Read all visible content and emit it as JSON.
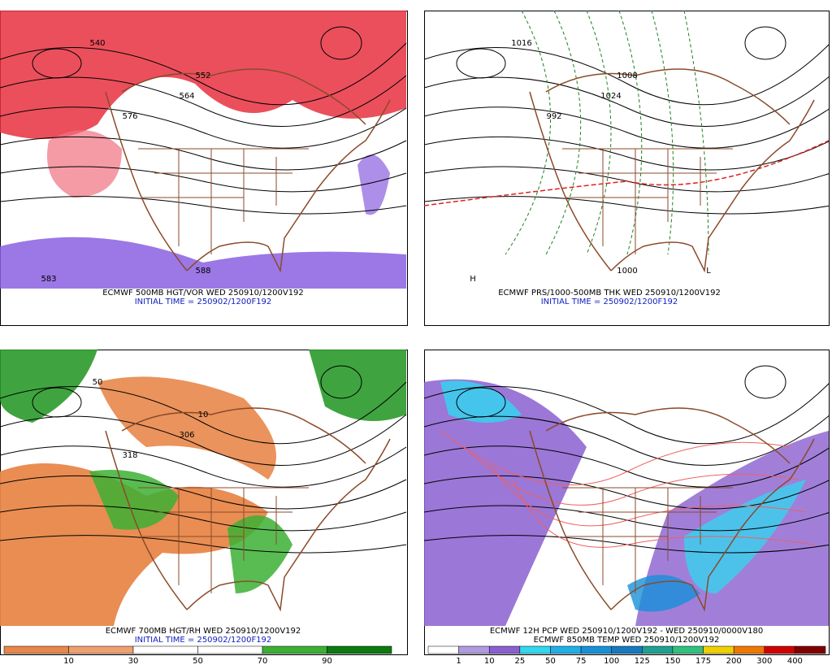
{
  "panels": [
    {
      "caption": "ECMWF 500MB HGT/VOR WED 250910/1200V192",
      "initial_time": "INITIAL TIME = 250902/1200F192",
      "contour_labels": [
        "540",
        "552",
        "564",
        "576",
        "588",
        "583"
      ]
    },
    {
      "caption": "ECMWF PRS/1000-500MB THK WED 250910/1200V192",
      "initial_time": "INITIAL TIME = 250902/1200F192",
      "contour_labels": [
        "1016",
        "1008",
        "1024",
        "992",
        "1000",
        "H",
        "L"
      ]
    },
    {
      "caption": "ECMWF 700MB HGT/RH WED 250910/1200V192",
      "initial_time": "INITIAL TIME = 250902/1200F192",
      "contour_labels": [
        "50",
        "10",
        "306",
        "318"
      ]
    },
    {
      "captions": [
        "ECMWF 12H PCP WED 250910/1200V192 - WED 250910/0000V180",
        "ECMWF 850MB TEMP WED 250910/1200V192"
      ]
    }
  ],
  "rh_colorbar": {
    "labels": [
      "10",
      "30",
      "50",
      "70",
      "90"
    ],
    "colors": [
      "#e8874a",
      "#f0a070",
      "#ffffff",
      "#ffffff",
      "#3cb034",
      "#0c7a10"
    ]
  },
  "pcp_colorbar": {
    "labels": [
      "1",
      "10",
      "25",
      "50",
      "75",
      "100",
      "125",
      "150",
      "175",
      "200",
      "300",
      "400"
    ],
    "colors": [
      "#ffffff",
      "#b09ae0",
      "#8a5fd0",
      "#30d8f0",
      "#20b0e8",
      "#1890d8",
      "#1878c0",
      "#20a090",
      "#30c080",
      "#f0d000",
      "#f07800",
      "#d00000",
      "#800000"
    ]
  }
}
